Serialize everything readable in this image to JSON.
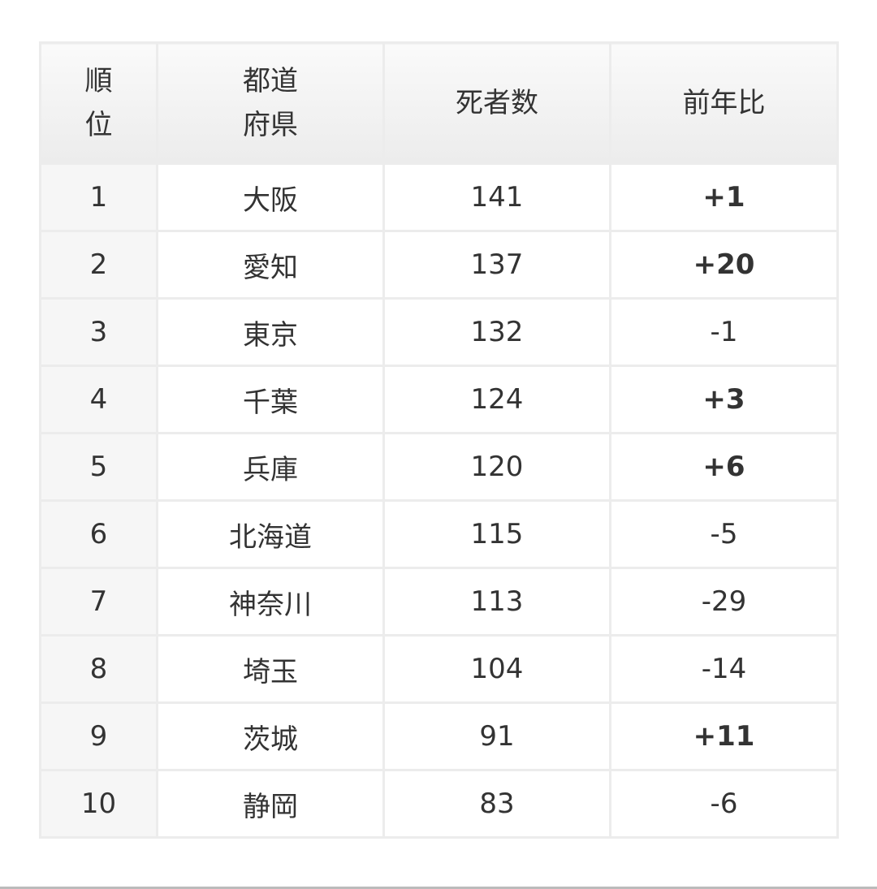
{
  "headers": {
    "rank_line1": "順",
    "rank_line2": "位",
    "pref_line1": "都道",
    "pref_line2": "府県",
    "deaths": "死者数",
    "change": "前年比"
  },
  "rows": [
    {
      "rank": "1",
      "pref": "大阪",
      "deaths": "141",
      "change": "+1"
    },
    {
      "rank": "2",
      "pref": "愛知",
      "deaths": "137",
      "change": "+20"
    },
    {
      "rank": "3",
      "pref": "東京",
      "deaths": "132",
      "change": "-1"
    },
    {
      "rank": "4",
      "pref": "千葉",
      "deaths": "124",
      "change": "+3"
    },
    {
      "rank": "5",
      "pref": "兵庫",
      "deaths": "120",
      "change": "+6"
    },
    {
      "rank": "6",
      "pref": "北海道",
      "deaths": "115",
      "change": "-5"
    },
    {
      "rank": "7",
      "pref": "神奈川",
      "deaths": "113",
      "change": "-29"
    },
    {
      "rank": "8",
      "pref": "埼玉",
      "deaths": "104",
      "change": "-14"
    },
    {
      "rank": "9",
      "pref": "茨城",
      "deaths": "91",
      "change": "+11"
    },
    {
      "rank": "10",
      "pref": "静岡",
      "deaths": "83",
      "change": "-6"
    }
  ]
}
